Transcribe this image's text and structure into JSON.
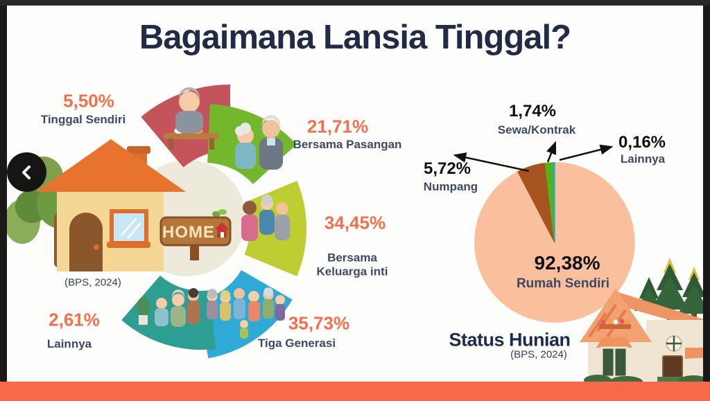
{
  "page_title": "Bagaimana Lansia Tinggal?",
  "home_sign": "HOME",
  "nav": {
    "prev_icon": "chevron-left"
  },
  "colors": {
    "accent_orange": "#F3704C",
    "navy_text": "#3D4964",
    "title_navy": "#222B45",
    "bottom_bar": "#F8694A",
    "frame_black": "#1B1918",
    "center_circle": "#EDEADB"
  },
  "chart_data": [
    {
      "type": "pie",
      "style": "segmented illustrated ring",
      "title": "Bagaimana Lansia Tinggal?",
      "source": "(BPS, 2024)",
      "categories": [
        "Tinggal Sendiri",
        "Bersama Pasangan",
        "Bersama Keluarga inti",
        "Tiga Generasi",
        "Lainnya"
      ],
      "values": [
        5.5,
        21.71,
        34.45,
        35.73,
        2.61
      ],
      "labels": [
        "5,50%",
        "21,71%",
        "34,45%",
        "35,73%",
        "2,61%"
      ],
      "colors": [
        "#C4535C",
        "#73B82C",
        "#BECD32",
        "#2FA9D6",
        "#2E9E92"
      ],
      "legend_position": "around"
    },
    {
      "type": "pie",
      "title": "Status Hunian",
      "source": "(BPS, 2024)",
      "categories": [
        "Rumah Sendiri",
        "Numpang",
        "Sewa/Kontrak",
        "Lainnya"
      ],
      "values": [
        92.38,
        5.72,
        1.74,
        0.16
      ],
      "labels": [
        "92,38%",
        "5,72%",
        "1,74%",
        "0,16%"
      ],
      "colors": [
        "#FAC09D",
        "#A5541F",
        "#55B01E",
        "#1FB0DC"
      ],
      "legend_position": "callout-arrows"
    }
  ]
}
